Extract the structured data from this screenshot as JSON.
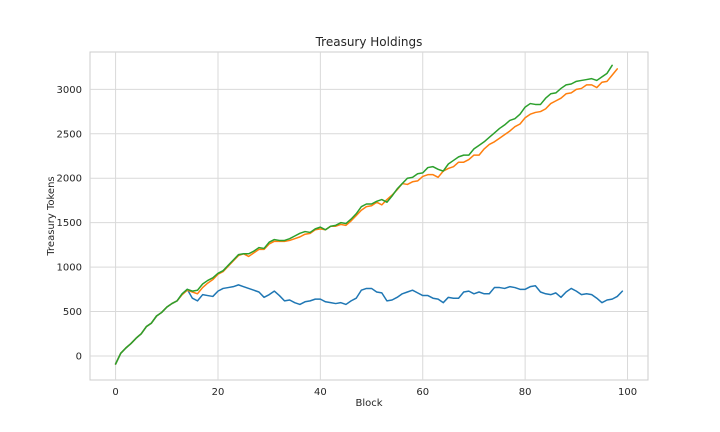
{
  "chart_data": {
    "type": "line",
    "title": "Treasury Holdings",
    "xlabel": "Block",
    "ylabel": "Treasury Tokens",
    "xlim": [
      -5,
      104
    ],
    "ylim": [
      -270,
      3420
    ],
    "xticks": [
      0,
      20,
      40,
      60,
      80,
      100
    ],
    "yticks": [
      0,
      500,
      1000,
      1500,
      2000,
      2500,
      3000
    ],
    "grid": true,
    "legend": "none",
    "series": [
      {
        "color": "#1f77b4",
        "x_start": 0,
        "values": [
          -90,
          30,
          90,
          140,
          200,
          250,
          330,
          370,
          450,
          490,
          550,
          590,
          620,
          700,
          750,
          650,
          620,
          690,
          680,
          670,
          730,
          760,
          770,
          780,
          800,
          780,
          760,
          740,
          720,
          660,
          690,
          730,
          680,
          620,
          630,
          600,
          580,
          610,
          620,
          640,
          640,
          610,
          600,
          590,
          600,
          580,
          620,
          650,
          740,
          760,
          760,
          720,
          710,
          620,
          630,
          660,
          700,
          720,
          740,
          710,
          680,
          680,
          650,
          640,
          600,
          660,
          650,
          650,
          720,
          730,
          700,
          720,
          700,
          700,
          770,
          770,
          760,
          780,
          770,
          750,
          750,
          780,
          790,
          720,
          700,
          690,
          710,
          660,
          720,
          760,
          730,
          690,
          700,
          690,
          650,
          600,
          630,
          640,
          670,
          730
        ]
      },
      {
        "color": "#ff7f0e",
        "x_start": 0,
        "values": [
          -90,
          30,
          90,
          140,
          200,
          250,
          330,
          370,
          450,
          490,
          550,
          590,
          620,
          690,
          740,
          720,
          700,
          770,
          820,
          860,
          920,
          950,
          1010,
          1070,
          1130,
          1150,
          1120,
          1160,
          1200,
          1200,
          1260,
          1290,
          1290,
          1290,
          1300,
          1320,
          1340,
          1370,
          1380,
          1420,
          1430,
          1420,
          1460,
          1460,
          1480,
          1470,
          1520,
          1580,
          1640,
          1680,
          1690,
          1730,
          1700,
          1760,
          1810,
          1870,
          1940,
          1930,
          1960,
          1970,
          2020,
          2040,
          2040,
          2010,
          2080,
          2110,
          2130,
          2180,
          2180,
          2210,
          2260,
          2260,
          2330,
          2380,
          2410,
          2450,
          2490,
          2530,
          2580,
          2610,
          2680,
          2720,
          2740,
          2750,
          2780,
          2840,
          2870,
          2900,
          2950,
          2960,
          3000,
          3010,
          3050,
          3050,
          3020,
          3080,
          3090,
          3160,
          3230
        ]
      },
      {
        "color": "#2ca02c",
        "x_start": 0,
        "values": [
          -90,
          30,
          90,
          140,
          200,
          250,
          330,
          370,
          450,
          490,
          550,
          590,
          620,
          700,
          750,
          730,
          740,
          810,
          850,
          880,
          930,
          960,
          1020,
          1080,
          1140,
          1150,
          1150,
          1180,
          1220,
          1210,
          1280,
          1310,
          1300,
          1300,
          1320,
          1350,
          1380,
          1400,
          1390,
          1430,
          1450,
          1420,
          1460,
          1470,
          1500,
          1490,
          1540,
          1600,
          1680,
          1710,
          1710,
          1740,
          1760,
          1730,
          1800,
          1880,
          1940,
          2000,
          2010,
          2050,
          2060,
          2120,
          2130,
          2100,
          2080,
          2160,
          2200,
          2240,
          2260,
          2260,
          2330,
          2370,
          2410,
          2460,
          2510,
          2560,
          2600,
          2650,
          2670,
          2720,
          2800,
          2840,
          2830,
          2830,
          2900,
          2950,
          2960,
          3010,
          3050,
          3060,
          3090,
          3100,
          3110,
          3120,
          3100,
          3140,
          3180,
          3270
        ]
      }
    ]
  }
}
